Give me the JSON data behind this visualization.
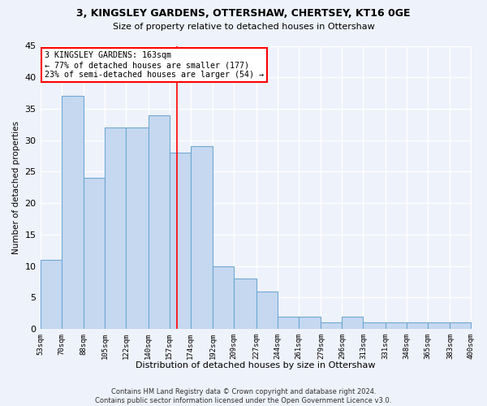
{
  "title1": "3, KINGSLEY GARDENS, OTTERSHAW, CHERTSEY, KT16 0GE",
  "title2": "Size of property relative to detached houses in Ottershaw",
  "xlabel": "Distribution of detached houses by size in Ottershaw",
  "ylabel": "Number of detached properties",
  "bar_heights": [
    11,
    37,
    24,
    32,
    32,
    34,
    28,
    29,
    10,
    8,
    6,
    2,
    2,
    1,
    2,
    1,
    1,
    1,
    1,
    1
  ],
  "bin_edges": [
    53,
    70,
    88,
    105,
    122,
    140,
    157,
    174,
    192,
    209,
    227,
    244,
    261,
    279,
    296,
    313,
    331,
    348,
    365,
    383,
    400
  ],
  "bar_color": "#c5d8f0",
  "bar_edge_color": "#6fa8d4",
  "annotation_text": "3 KINGSLEY GARDENS: 163sqm\n← 77% of detached houses are smaller (177)\n23% of semi-detached houses are larger (54) →",
  "property_line_x": 163,
  "ylim": [
    0,
    45
  ],
  "yticks": [
    0,
    5,
    10,
    15,
    20,
    25,
    30,
    35,
    40,
    45
  ],
  "bg_color": "#eef2fa",
  "grid_color": "#ffffff",
  "footer_text": "Contains HM Land Registry data © Crown copyright and database right 2024.\nContains public sector information licensed under the Open Government Licence v3.0."
}
